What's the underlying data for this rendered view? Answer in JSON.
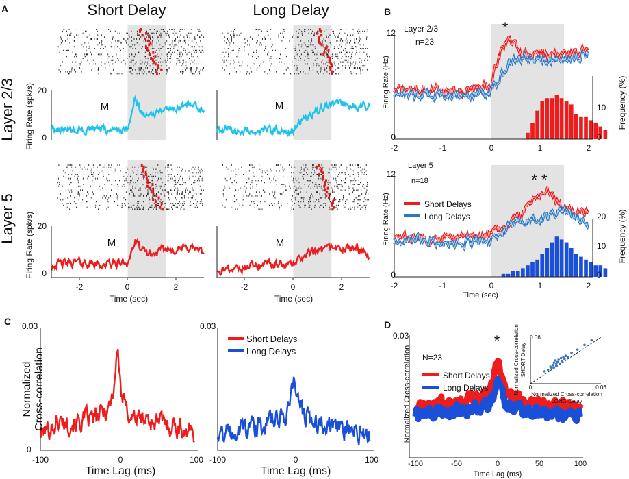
{
  "figure": {
    "panels": {
      "A": "A",
      "B": "B",
      "C": "C",
      "D": "D"
    },
    "colors": {
      "red": "#ee1c1c",
      "blue": "#1a4fd8",
      "bblue": "#2a79c2",
      "cyan": "#22c3ea",
      "shade": "#e3e3e3",
      "raster": "#222222",
      "raster_mark": "#e01b1b"
    }
  },
  "chart_data": [
    {
      "id": "A",
      "type": "line",
      "title_short": "Short Delay",
      "title_long": "Long Delay",
      "row_labels": [
        "Layer 2/3",
        "Layer 5"
      ],
      "ylabel": "Firing Rate (spk/s)",
      "xlabel": "Time (sec)",
      "xlim": [
        -3,
        3
      ],
      "ylim": [
        0,
        20
      ],
      "xticks": [
        "-2",
        "0",
        "2"
      ],
      "yticks": [
        "0",
        "20"
      ],
      "marker_label": "M",
      "shaded_interval": [
        0,
        1.5
      ],
      "series": [
        {
          "name": "Layer 2/3 Short Delay",
          "color": "cyan",
          "x": [
            -3,
            -2,
            -1,
            0,
            0.3,
            0.6,
            1,
            1.5,
            2,
            2.5,
            3
          ],
          "values": [
            5,
            4,
            4,
            5,
            17,
            10,
            11,
            13,
            13,
            15,
            12
          ]
        },
        {
          "name": "Layer 2/3 Long Delay",
          "color": "cyan",
          "x": [
            -3,
            -2,
            -1,
            0,
            0.3,
            0.6,
            1,
            1.5,
            2,
            2.5,
            3
          ],
          "values": [
            4,
            4,
            4,
            4,
            7,
            9,
            12,
            15,
            15,
            14,
            13
          ]
        },
        {
          "name": "Layer 5 Short Delay",
          "color": "red",
          "x": [
            -3,
            -2,
            -1,
            0,
            0.3,
            0.6,
            1,
            1.5,
            2,
            2.5,
            3
          ],
          "values": [
            5,
            6,
            5,
            6,
            14,
            10,
            9,
            11,
            11,
            12,
            9
          ]
        },
        {
          "name": "Layer 5 Long Delay",
          "color": "red",
          "x": [
            -3,
            -2,
            -1,
            0,
            0.3,
            0.6,
            1,
            1.5,
            2,
            2.5,
            3
          ],
          "values": [
            3,
            4,
            5,
            5,
            8,
            10,
            10,
            11,
            11,
            12,
            7
          ]
        }
      ]
    },
    {
      "id": "B",
      "type": "line",
      "xlabel": "Time (sec)",
      "ylabel": "Firing Rate (Hz)",
      "y2label": "Frequency (%)",
      "xlim": [
        -2,
        2.5
      ],
      "ylim": [
        0,
        12
      ],
      "y2lim": [
        0,
        20
      ],
      "xticks": [
        "-2",
        "-1",
        "0",
        "1",
        "2"
      ],
      "yticks": [
        "0",
        "12"
      ],
      "y2ticks": [
        "0",
        "10",
        "20"
      ],
      "shaded_interval": [
        0,
        1.5
      ],
      "legend": [
        "Short Delays",
        "Long Delays"
      ],
      "subplots": [
        {
          "title": "Layer 2/3",
          "n_label": "n=23",
          "significance": "*",
          "series": [
            {
              "name": "Short Delays",
              "color": "red",
              "x": [
                -2,
                -1.5,
                -1,
                -0.5,
                0,
                0.2,
                0.35,
                0.6,
                1,
                1.5,
                2
              ],
              "values": [
                5.5,
                5.5,
                5.5,
                5.5,
                6,
                10,
                11.5,
                9.5,
                9.5,
                9.5,
                10
              ]
            },
            {
              "name": "Long Delays",
              "color": "blue",
              "x": [
                -2,
                -1.5,
                -1,
                -0.5,
                0,
                0.2,
                0.35,
                0.6,
                1,
                1.5,
                2
              ],
              "values": [
                5,
                5,
                5,
                5,
                5.5,
                7,
                8.5,
                9,
                9,
                9,
                9.5
              ]
            }
          ],
          "histogram": {
            "color": "red",
            "bin_centers": [
              0.75,
              0.85,
              0.95,
              1.05,
              1.15,
              1.25,
              1.35,
              1.45,
              1.55,
              1.65,
              1.75,
              1.85,
              1.95,
              2.05,
              2.15,
              2.25,
              2.35
            ],
            "values": [
              2,
              5,
              9,
              12,
              13,
              13,
              14,
              13,
              12,
              11,
              8,
              7,
              7,
              6,
              5,
              4,
              3
            ]
          }
        },
        {
          "title": "Layer 5",
          "n_label": "n=18",
          "significance": "* *",
          "series": [
            {
              "name": "Short Delays",
              "color": "red",
              "x": [
                -2,
                -1.5,
                -1,
                -0.5,
                0,
                0.3,
                0.6,
                0.9,
                1.2,
                1.5,
                2
              ],
              "values": [
                4.5,
                4.5,
                4.5,
                4.5,
                5,
                6,
                7,
                9.5,
                10,
                8,
                7.5
              ]
            },
            {
              "name": "Long Delays",
              "color": "blue",
              "x": [
                -2,
                -1.5,
                -1,
                -0.5,
                0,
                0.3,
                0.6,
                0.9,
                1.2,
                1.5,
                2
              ],
              "values": [
                4,
                4.5,
                4,
                4,
                4.5,
                5.5,
                6.5,
                6.5,
                7,
                8,
                6
              ]
            }
          ],
          "histogram": {
            "color": "blue",
            "bin_centers": [
              0.25,
              0.35,
              0.45,
              0.55,
              0.65,
              0.75,
              0.85,
              0.95,
              1.05,
              1.15,
              1.25,
              1.35,
              1.45,
              1.55,
              1.65,
              1.75,
              1.85,
              1.95,
              2.05,
              2.15,
              2.25,
              2.35
            ],
            "values": [
              1,
              1,
              2,
              2,
              3,
              4,
              5,
              6,
              8,
              10,
              12,
              14,
              13,
              12,
              10,
              8,
              7,
              6,
              5,
              4,
              4,
              3
            ]
          }
        }
      ]
    },
    {
      "id": "C",
      "type": "line",
      "ylabel": "Normalized\nCross-correlation",
      "xlabel": "Time Lag (ms)",
      "xlim": [
        -100,
        100
      ],
      "ylim": [
        0,
        0.03
      ],
      "xticks": [
        "-100",
        "0",
        "100"
      ],
      "yticks": [
        "0",
        "0.03"
      ],
      "legend": [
        "Short Delays",
        "Long Delays"
      ],
      "series": [
        {
          "name": "Short Delays",
          "color": "red",
          "x": [
            -100,
            -75,
            -50,
            -25,
            -10,
            -5,
            0,
            5,
            10,
            25,
            50,
            75,
            100
          ],
          "values": [
            0.004,
            0.007,
            0.007,
            0.008,
            0.011,
            0.015,
            0.025,
            0.014,
            0.01,
            0.008,
            0.007,
            0.006,
            0.004
          ]
        },
        {
          "name": "Long Delays",
          "color": "blue",
          "x": [
            -100,
            -75,
            -50,
            -25,
            -10,
            -5,
            0,
            5,
            10,
            25,
            50,
            75,
            100
          ],
          "values": [
            0.004,
            0.005,
            0.006,
            0.007,
            0.009,
            0.012,
            0.018,
            0.012,
            0.01,
            0.007,
            0.006,
            0.005,
            0.004
          ]
        }
      ]
    },
    {
      "id": "D",
      "type": "line",
      "ylabel": "Normalized Cross-correlation",
      "xlabel": "Time Lag (ms)",
      "xlim": [
        -100,
        100
      ],
      "ylim": [
        0,
        0.03
      ],
      "xticks": [
        "-100",
        "-50",
        "0",
        "50",
        "100"
      ],
      "yticks": [
        "0.03"
      ],
      "n_label": "N=23",
      "significance": "*",
      "legend": [
        "Short Delays",
        "Long Delays"
      ],
      "series": [
        {
          "name": "Short Delays",
          "color": "red",
          "x": [
            -100,
            -50,
            -25,
            -10,
            -5,
            0,
            5,
            10,
            25,
            50,
            100
          ],
          "values": [
            0.0125,
            0.0135,
            0.0145,
            0.016,
            0.019,
            0.0245,
            0.019,
            0.016,
            0.0145,
            0.013,
            0.012
          ]
        },
        {
          "name": "Long Delays",
          "color": "blue",
          "x": [
            -100,
            -50,
            -25,
            -10,
            -5,
            0,
            5,
            10,
            25,
            50,
            100
          ],
          "values": [
            0.0105,
            0.0112,
            0.0122,
            0.0135,
            0.0155,
            0.0195,
            0.0155,
            0.0135,
            0.0122,
            0.011,
            0.0105
          ]
        }
      ],
      "inset": {
        "type": "scatter",
        "xlabel": "Normalized Cross-correlation\nLONG Delay",
        "ylabel": "Normalized Cross-correlation\nSHORT Delay",
        "xlim": [
          0,
          0.06
        ],
        "ylim": [
          0,
          0.06
        ],
        "xticks": [
          "0",
          "0.06"
        ],
        "yticks": [
          "0.06"
        ],
        "color": "#3b78c0",
        "x": [
          0.012,
          0.015,
          0.017,
          0.018,
          0.019,
          0.02,
          0.021,
          0.022,
          0.022,
          0.023,
          0.024,
          0.025,
          0.026,
          0.027,
          0.028,
          0.029,
          0.03,
          0.032,
          0.035,
          0.04,
          0.046,
          0.052,
          0.02
        ],
        "y": [
          0.016,
          0.018,
          0.022,
          0.02,
          0.024,
          0.027,
          0.03,
          0.023,
          0.026,
          0.028,
          0.031,
          0.026,
          0.033,
          0.029,
          0.034,
          0.032,
          0.036,
          0.034,
          0.04,
          0.044,
          0.05,
          0.056,
          0.021
        ]
      }
    }
  ]
}
